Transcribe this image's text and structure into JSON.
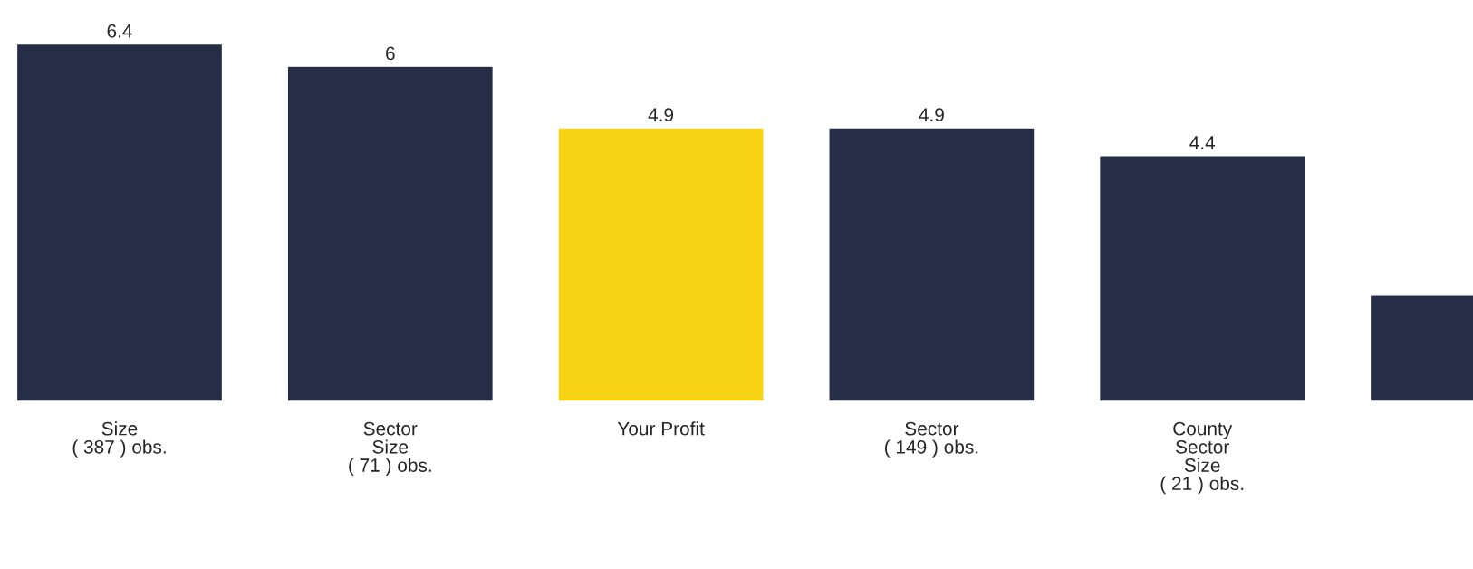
{
  "chart_data": {
    "type": "bar",
    "categories": [
      "Size\n( 387 ) obs.",
      "Sector\nSize\n( 71 ) obs.",
      "Your Profit",
      "Sector\n( 149 ) obs.",
      "County\nSector\nSize\n( 21 ) obs.",
      null
    ],
    "values": [
      6.4,
      6,
      4.9,
      4.9,
      4.4,
      1.9
    ],
    "colors": [
      "#262e47",
      "#262e47",
      "#f8d313",
      "#262e47",
      "#262e47",
      "#262e47"
    ],
    "value_labels": [
      "6.4",
      "6",
      "4.9",
      "4.9",
      "4.4",
      null
    ],
    "grid": false,
    "legend": false
  }
}
